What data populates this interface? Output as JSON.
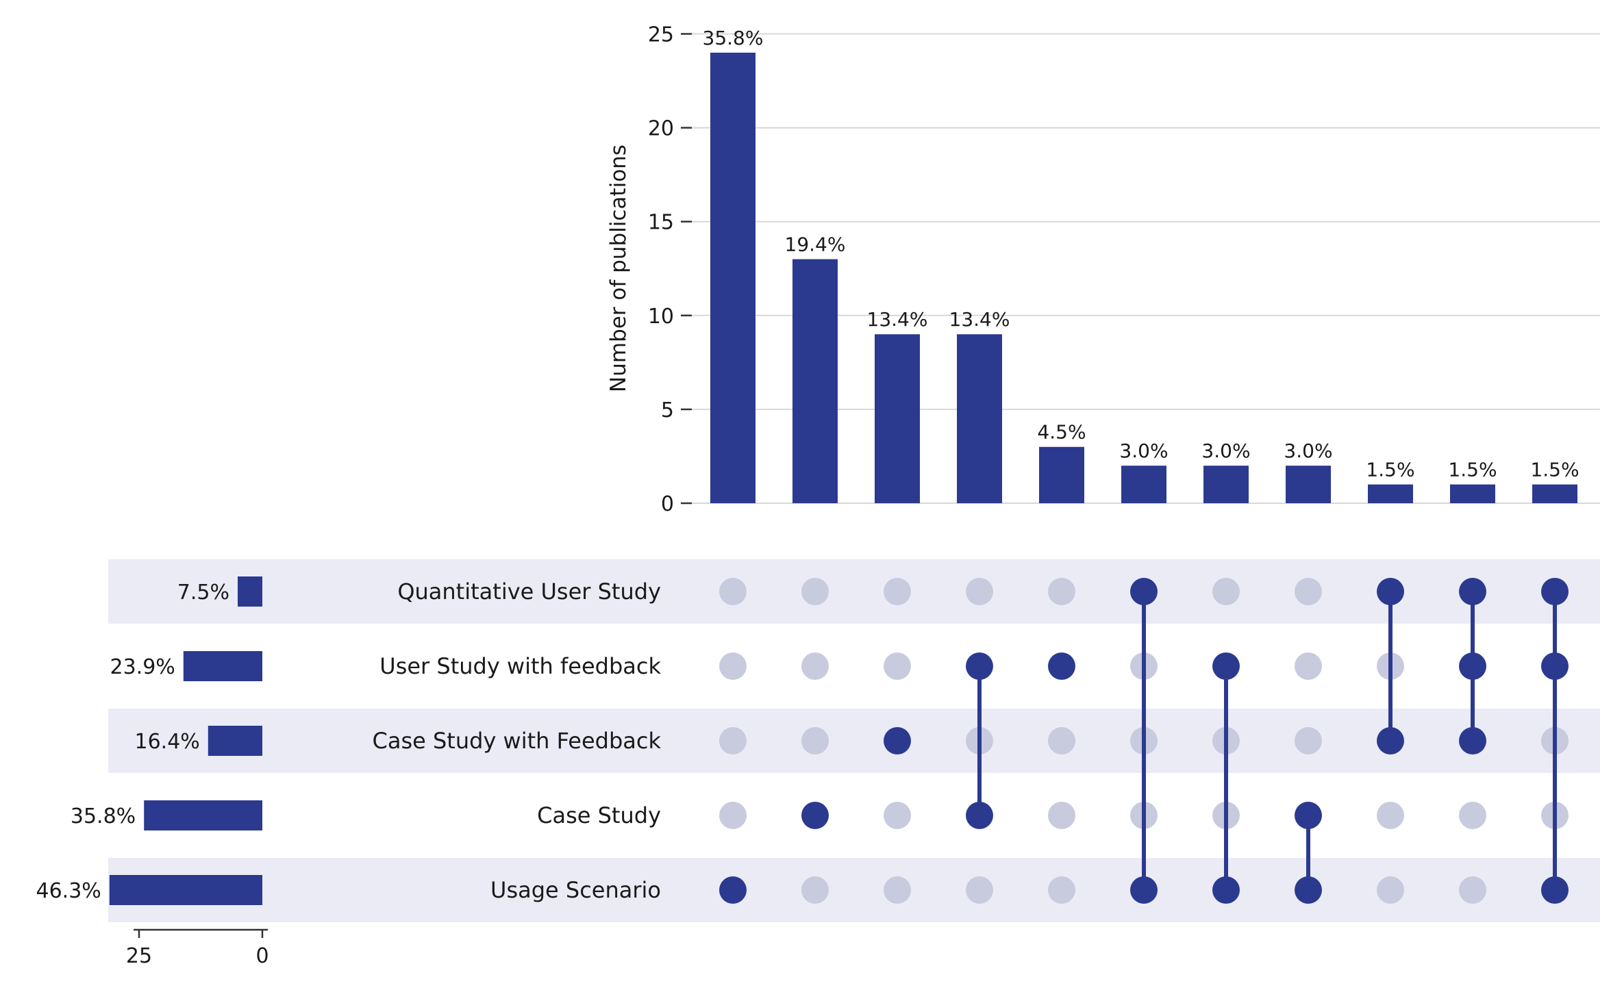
{
  "chart_data": {
    "type": "bar",
    "subtype": "upset-plot",
    "ylabel": "Number of publications",
    "ylim": [
      0,
      25
    ],
    "yticks": [
      0,
      5,
      10,
      15,
      20,
      25
    ],
    "grid": true,
    "legend": "none",
    "colors": {
      "bar": "#2b3a8f",
      "dot_active": "#2b3a8f",
      "dot_inactive": "#c8cade",
      "stripe": "#eaebf5",
      "gridline": "#d8d8d8",
      "axis": "#333333",
      "text": "#1a1a1a"
    },
    "sets": [
      {
        "label": "Quantitative User Study",
        "pct": "7.5%",
        "size": 5
      },
      {
        "label": "User Study with feedback",
        "pct": "23.9%",
        "size": 16
      },
      {
        "label": "Case Study with Feedback",
        "pct": "16.4%",
        "size": 11
      },
      {
        "label": "Case Study",
        "pct": "35.8%",
        "size": 24
      },
      {
        "label": "Usage Scenario",
        "pct": "46.3%",
        "size": 31
      }
    ],
    "set_size_axis": {
      "ticks": [
        25,
        0
      ],
      "max": 25
    },
    "intersections": [
      {
        "members": [
          4
        ],
        "count": 24,
        "pct": "35.8%"
      },
      {
        "members": [
          3
        ],
        "count": 13,
        "pct": "19.4%"
      },
      {
        "members": [
          2
        ],
        "count": 9,
        "pct": "13.4%"
      },
      {
        "members": [
          1,
          3
        ],
        "count": 9,
        "pct": "13.4%"
      },
      {
        "members": [
          1
        ],
        "count": 3,
        "pct": "4.5%"
      },
      {
        "members": [
          0,
          4
        ],
        "count": 2,
        "pct": "3.0%"
      },
      {
        "members": [
          1,
          4
        ],
        "count": 2,
        "pct": "3.0%"
      },
      {
        "members": [
          3,
          4
        ],
        "count": 2,
        "pct": "3.0%"
      },
      {
        "members": [
          0,
          2
        ],
        "count": 1,
        "pct": "1.5%"
      },
      {
        "members": [
          0,
          1,
          2
        ],
        "count": 1,
        "pct": "1.5%"
      },
      {
        "members": [
          0,
          1,
          4
        ],
        "count": 1,
        "pct": "1.5%"
      }
    ]
  }
}
